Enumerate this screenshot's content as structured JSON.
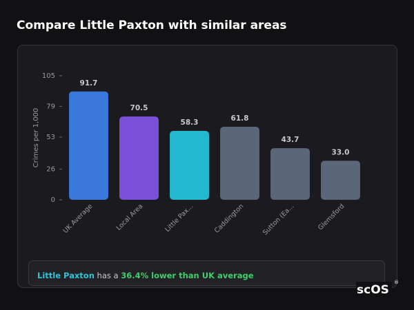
{
  "header": {
    "title": "Compare Little Paxton with similar areas"
  },
  "chart_data": {
    "type": "bar",
    "y_label": "Crimes per 1,000",
    "categories": [
      "UK Average",
      "Local Area",
      "Little Pax...",
      "Caddington",
      "Sutton (Ea...",
      "Glemsford"
    ],
    "values": [
      91.7,
      70.5,
      58.3,
      61.8,
      43.7,
      33.0
    ],
    "value_labels": [
      "91.7",
      "70.5",
      "58.3",
      "61.8",
      "43.7",
      "33.0"
    ],
    "colors": [
      "#3a78dc",
      "#7b50d8",
      "#22b9d0",
      "#5b6678",
      "#5b6678",
      "#5b6678"
    ],
    "ylim": [
      0,
      105
    ],
    "yticks": [
      0,
      26,
      53,
      79,
      105
    ],
    "grid": false
  },
  "info": {
    "parts": [
      "Little Paxton",
      " has a ",
      "36.4% lower than UK average"
    ]
  },
  "logo": {
    "text": "scOS",
    "mark": "®"
  }
}
